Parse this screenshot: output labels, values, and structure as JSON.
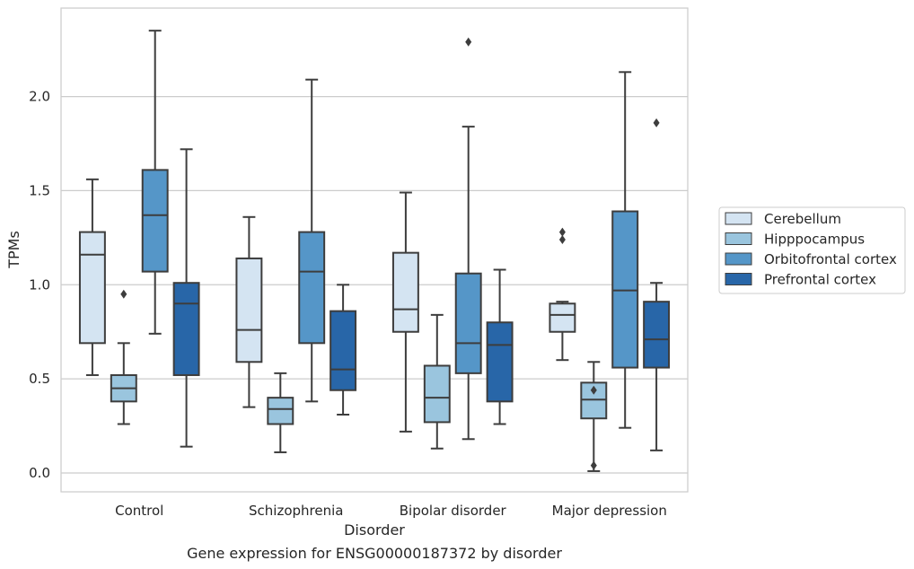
{
  "caption": "Gene expression for ENSG00000187372 by disorder",
  "chart_data": {
    "type": "box",
    "xlabel": "Disorder",
    "ylabel": "TPMs",
    "ylim": [
      -0.1,
      2.47
    ],
    "yticks": [
      0.0,
      0.5,
      1.0,
      1.5,
      2.0
    ],
    "ytick_labels": [
      "0.0",
      "0.5",
      "1.0",
      "1.5",
      "2.0"
    ],
    "grid": "horizontal",
    "legend_position": "right",
    "categories": [
      "Control",
      "Schizophrenia",
      "Bipolar disorder",
      "Major depression"
    ],
    "series": [
      {
        "name": "Cerebellum",
        "color": "#d4e4f2",
        "boxes": [
          {
            "whisker_low": 0.52,
            "q1": 0.69,
            "median": 1.16,
            "q3": 1.28,
            "whisker_high": 1.56,
            "outliers": []
          },
          {
            "whisker_low": 0.35,
            "q1": 0.59,
            "median": 0.76,
            "q3": 1.14,
            "whisker_high": 1.36,
            "outliers": []
          },
          {
            "whisker_low": 0.22,
            "q1": 0.75,
            "median": 0.87,
            "q3": 1.17,
            "whisker_high": 1.49,
            "outliers": []
          },
          {
            "whisker_low": 0.6,
            "q1": 0.75,
            "median": 0.84,
            "q3": 0.9,
            "whisker_high": 0.91,
            "outliers": [
              1.28,
              1.24
            ]
          }
        ]
      },
      {
        "name": "Hipppocampus",
        "color": "#9ac5de",
        "boxes": [
          {
            "whisker_low": 0.26,
            "q1": 0.38,
            "median": 0.45,
            "q3": 0.52,
            "whisker_high": 0.69,
            "outliers": [
              0.95
            ]
          },
          {
            "whisker_low": 0.11,
            "q1": 0.26,
            "median": 0.34,
            "q3": 0.4,
            "whisker_high": 0.53,
            "outliers": []
          },
          {
            "whisker_low": 0.13,
            "q1": 0.27,
            "median": 0.4,
            "q3": 0.57,
            "whisker_high": 0.84,
            "outliers": []
          },
          {
            "whisker_low": 0.01,
            "q1": 0.29,
            "median": 0.39,
            "q3": 0.48,
            "whisker_high": 0.59,
            "outliers": [
              0.44,
              0.04
            ]
          }
        ]
      },
      {
        "name": "Orbitofrontal cortex",
        "color": "#5596c8",
        "boxes": [
          {
            "whisker_low": 0.74,
            "q1": 1.07,
            "median": 1.37,
            "q3": 1.61,
            "whisker_high": 2.35,
            "outliers": []
          },
          {
            "whisker_low": 0.38,
            "q1": 0.69,
            "median": 1.07,
            "q3": 1.28,
            "whisker_high": 2.09,
            "outliers": []
          },
          {
            "whisker_low": 0.18,
            "q1": 0.53,
            "median": 0.69,
            "q3": 1.06,
            "whisker_high": 1.84,
            "outliers": [
              2.29
            ]
          },
          {
            "whisker_low": 0.24,
            "q1": 0.56,
            "median": 0.97,
            "q3": 1.39,
            "whisker_high": 2.13,
            "outliers": []
          }
        ]
      },
      {
        "name": "Prefrontal cortex",
        "color": "#2866a8",
        "boxes": [
          {
            "whisker_low": 0.14,
            "q1": 0.52,
            "median": 0.9,
            "q3": 1.01,
            "whisker_high": 1.72,
            "outliers": []
          },
          {
            "whisker_low": 0.31,
            "q1": 0.44,
            "median": 0.55,
            "q3": 0.86,
            "whisker_high": 1.0,
            "outliers": []
          },
          {
            "whisker_low": 0.26,
            "q1": 0.38,
            "median": 0.68,
            "q3": 0.8,
            "whisker_high": 1.08,
            "outliers": []
          },
          {
            "whisker_low": 0.12,
            "q1": 0.56,
            "median": 0.71,
            "q3": 0.91,
            "whisker_high": 1.01,
            "outliers": [
              1.86
            ]
          }
        ]
      }
    ]
  }
}
